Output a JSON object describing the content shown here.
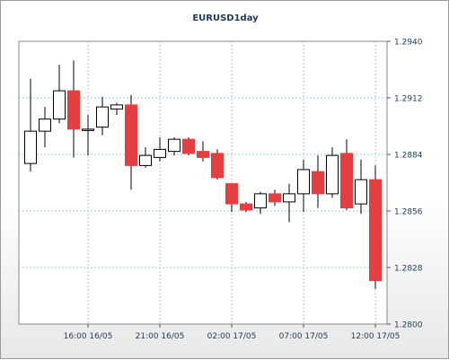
{
  "chart_data": {
    "type": "candlestick",
    "title": "EURUSD1day",
    "ylim": [
      1.28,
      1.294
    ],
    "y_ticks": [
      "1.2940",
      "1.2912",
      "1.2884",
      "1.2856",
      "1.2828",
      "1.2800"
    ],
    "x_tick_labels": [
      "16:00 16/05",
      "21:00 16/05",
      "02:00 17/05",
      "07:00 17/05",
      "12:00 17/05"
    ],
    "grid": true,
    "colors": {
      "up": "#ffffff",
      "down": "#e53e3e",
      "wick": "#000000",
      "grid": "#7cc4cf",
      "axis_text": "#1b3a5c",
      "title": "#1b3a5c"
    },
    "candles": [
      {
        "open": 1.28795,
        "high": 1.29215,
        "low": 1.28755,
        "close": 1.28955
      },
      {
        "open": 1.28955,
        "high": 1.29075,
        "low": 1.28875,
        "close": 1.29015
      },
      {
        "open": 1.29015,
        "high": 1.29285,
        "low": 1.28995,
        "close": 1.29155
      },
      {
        "open": 1.29155,
        "high": 1.29305,
        "low": 1.28825,
        "close": 1.28965
      },
      {
        "open": 1.28965,
        "high": 1.29035,
        "low": 1.28835,
        "close": 1.28965
      },
      {
        "open": 1.28975,
        "high": 1.29125,
        "low": 1.28935,
        "close": 1.29075
      },
      {
        "open": 1.29065,
        "high": 1.29095,
        "low": 1.29035,
        "close": 1.29085
      },
      {
        "open": 1.29085,
        "high": 1.29135,
        "low": 1.28665,
        "close": 1.28785
      },
      {
        "open": 1.28785,
        "high": 1.28875,
        "low": 1.28775,
        "close": 1.28835
      },
      {
        "open": 1.28825,
        "high": 1.28925,
        "low": 1.28805,
        "close": 1.28865
      },
      {
        "open": 1.28855,
        "high": 1.28925,
        "low": 1.28835,
        "close": 1.28915
      },
      {
        "open": 1.28915,
        "high": 1.28925,
        "low": 1.28835,
        "close": 1.28845
      },
      {
        "open": 1.28855,
        "high": 1.28905,
        "low": 1.28805,
        "close": 1.28825
      },
      {
        "open": 1.28845,
        "high": 1.28865,
        "low": 1.28715,
        "close": 1.28725
      },
      {
        "open": 1.28695,
        "high": 1.28695,
        "low": 1.28555,
        "close": 1.28595
      },
      {
        "open": 1.28595,
        "high": 1.28605,
        "low": 1.28555,
        "close": 1.28565
      },
      {
        "open": 1.28575,
        "high": 1.28655,
        "low": 1.28545,
        "close": 1.28645
      },
      {
        "open": 1.28645,
        "high": 1.28665,
        "low": 1.28585,
        "close": 1.28605
      },
      {
        "open": 1.28605,
        "high": 1.28695,
        "low": 1.28505,
        "close": 1.28645
      },
      {
        "open": 1.28645,
        "high": 1.28815,
        "low": 1.28555,
        "close": 1.28765
      },
      {
        "open": 1.28755,
        "high": 1.28835,
        "low": 1.28575,
        "close": 1.28645
      },
      {
        "open": 1.28645,
        "high": 1.28875,
        "low": 1.28625,
        "close": 1.28835
      },
      {
        "open": 1.28845,
        "high": 1.28915,
        "low": 1.28565,
        "close": 1.28575
      },
      {
        "open": 1.28595,
        "high": 1.28815,
        "low": 1.28545,
        "close": 1.28715
      },
      {
        "open": 1.28715,
        "high": 1.28785,
        "low": 1.28175,
        "close": 1.28215
      }
    ]
  }
}
